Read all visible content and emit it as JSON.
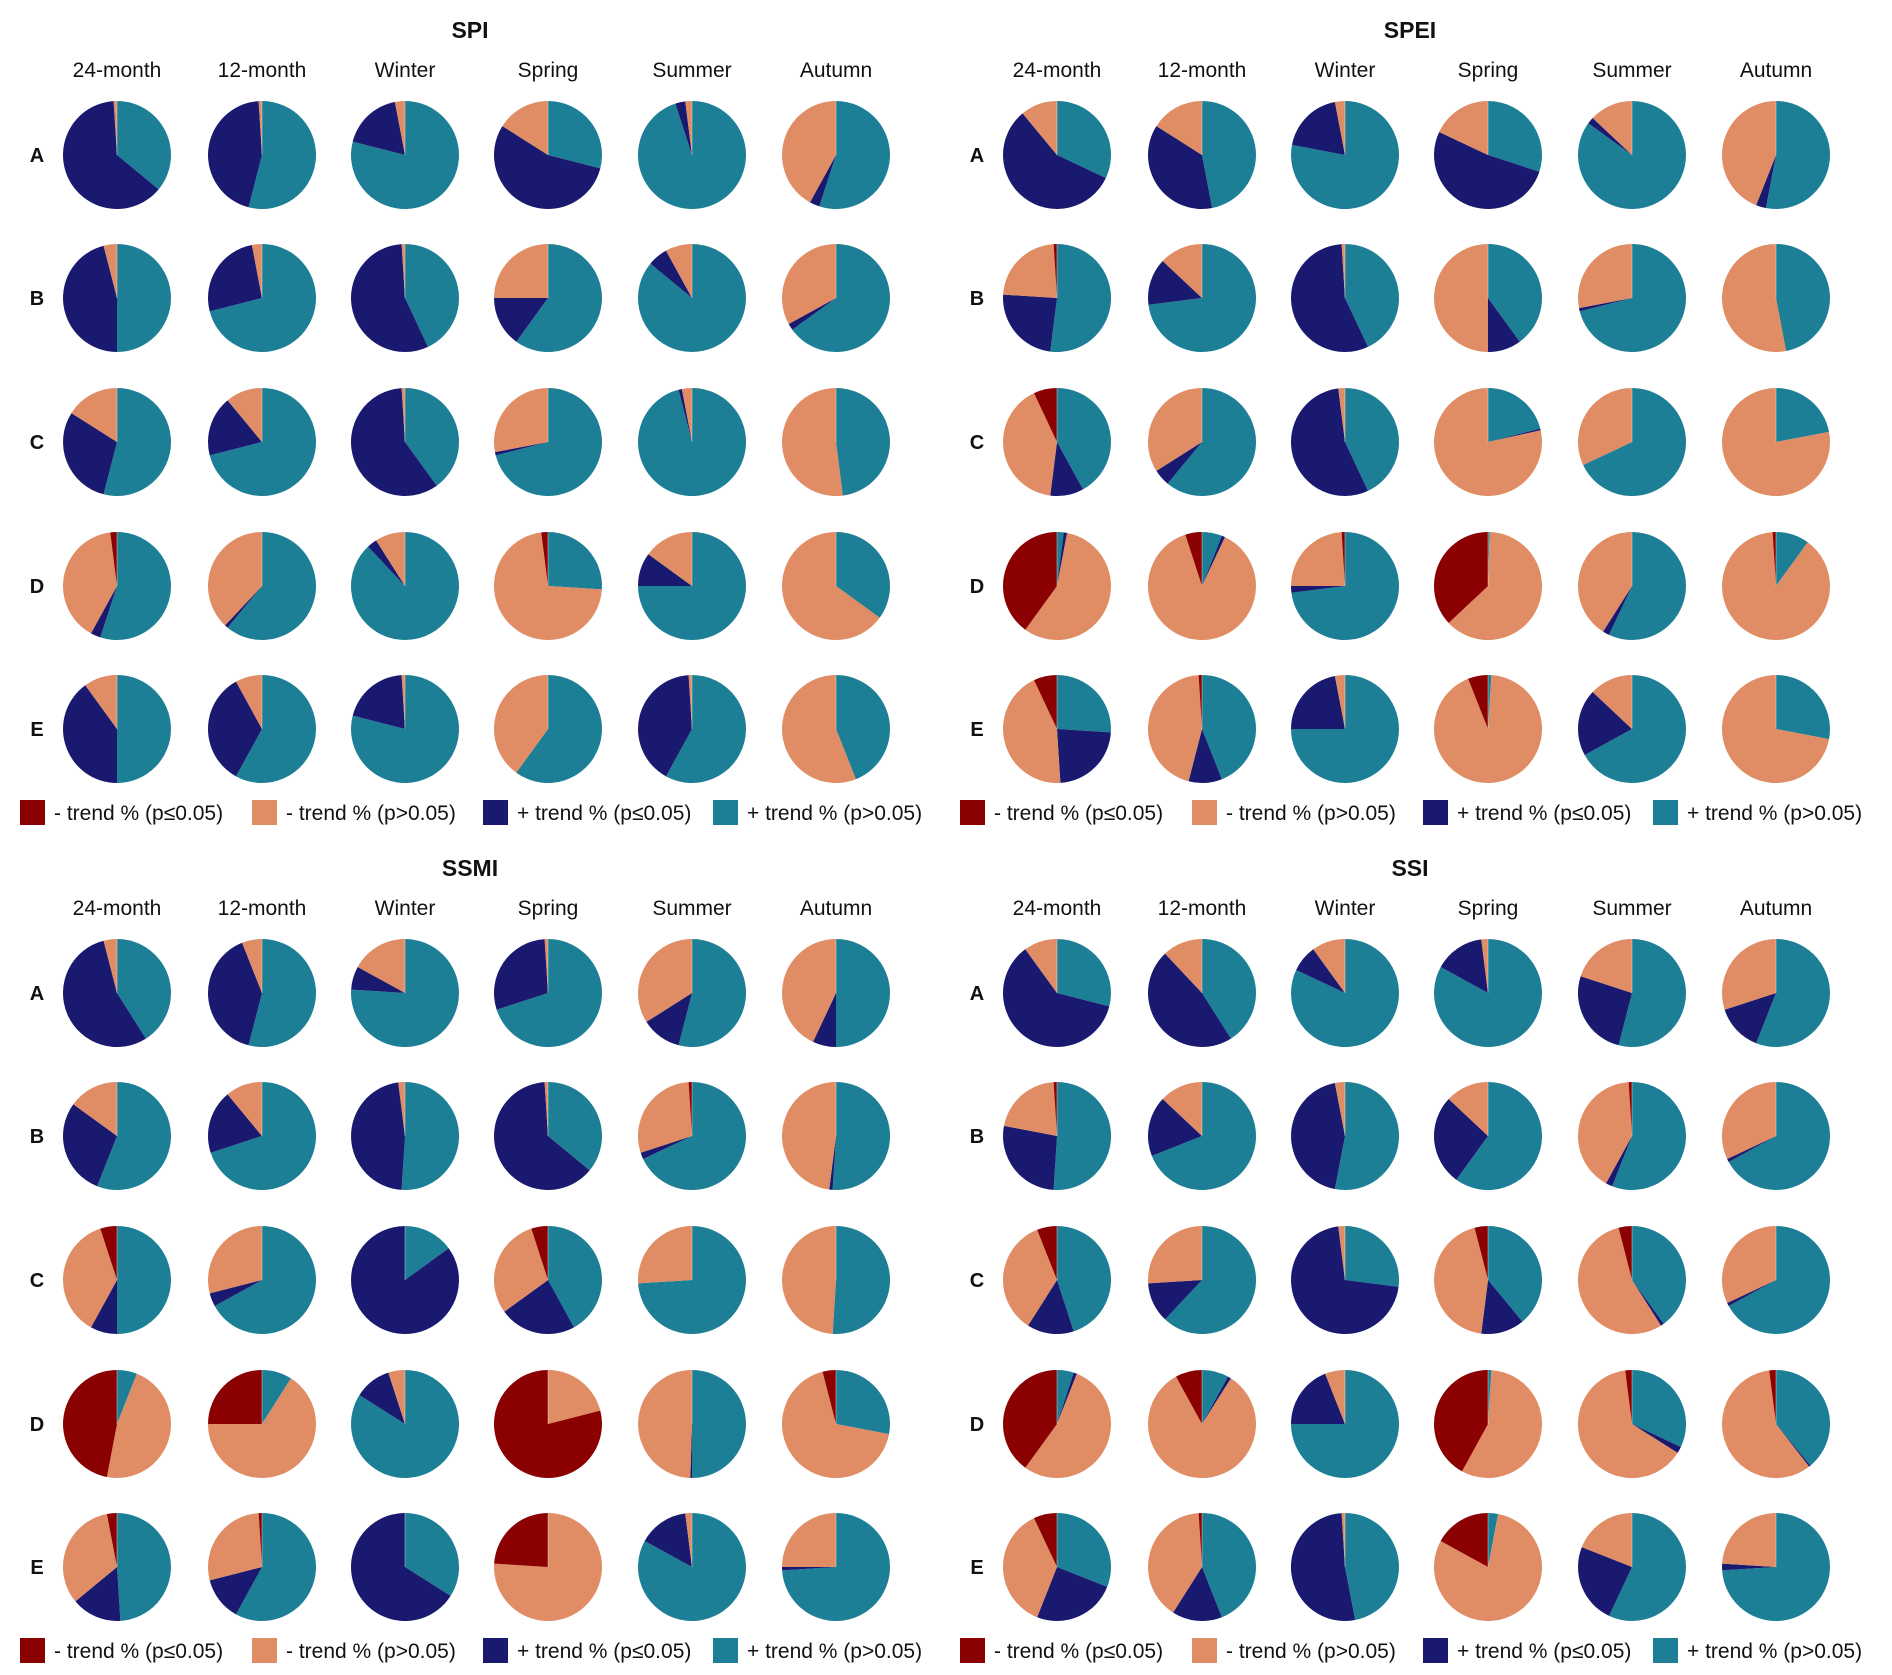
{
  "chart_data": {
    "type": "pie",
    "description": "Grid of pie charts: share of trend categories per drought index, region (A-E) and period",
    "legend": {
      "placement": "bottom",
      "entries": [
        {
          "key": "neg_sig",
          "label": "- trend % (p≤0.05)",
          "color": "#8B0000"
        },
        {
          "key": "neg_ns",
          "label": "- trend % (p>0.05)",
          "color": "#E08C65"
        },
        {
          "key": "pos_sig",
          "label": "+ trend % (p≤0.05)",
          "color": "#191970"
        },
        {
          "key": "pos_ns",
          "label": "+ trend % (p>0.05)",
          "color": "#1D7F96"
        }
      ]
    },
    "slice_order_clockwise_from_top": [
      "pos_ns",
      "pos_sig",
      "neg_ns",
      "neg_sig"
    ],
    "columns": [
      "24-month",
      "12-month",
      "Winter",
      "Spring",
      "Summer",
      "Autumn"
    ],
    "rows": [
      "A",
      "B",
      "C",
      "D",
      "E"
    ],
    "value_format": "[neg_sig, neg_ns, pos_sig, pos_ns] in percent",
    "panels": [
      {
        "title": "SPI",
        "values": [
          [
            [
              0,
              1,
              63,
              36
            ],
            [
              0,
              1,
              45,
              54
            ],
            [
              0,
              3,
              18,
              79
            ],
            [
              0,
              16,
              55,
              29
            ],
            [
              0,
              2,
              3,
              95
            ],
            [
              0,
              42,
              3,
              55
            ]
          ],
          [
            [
              0,
              4,
              46,
              50
            ],
            [
              0,
              3,
              26,
              71
            ],
            [
              0,
              1,
              56,
              43
            ],
            [
              0,
              25,
              15,
              60
            ],
            [
              0,
              8,
              6,
              86
            ],
            [
              0,
              33,
              2,
              65
            ]
          ],
          [
            [
              0,
              16,
              30,
              54
            ],
            [
              0,
              11,
              18,
              71
            ],
            [
              0,
              1,
              59,
              40
            ],
            [
              0,
              28,
              1,
              71
            ],
            [
              0,
              3,
              1,
              96
            ],
            [
              0,
              52,
              0,
              48
            ]
          ],
          [
            [
              2,
              40,
              3,
              55
            ],
            [
              0,
              38,
              1,
              61
            ],
            [
              0,
              9,
              3,
              88
            ],
            [
              2,
              72,
              0,
              26
            ],
            [
              0,
              15,
              10,
              75
            ],
            [
              0,
              65,
              0,
              35
            ]
          ],
          [
            [
              0,
              10,
              40,
              50
            ],
            [
              0,
              8,
              34,
              58
            ],
            [
              0,
              1,
              20,
              79
            ],
            [
              0,
              40,
              0,
              60
            ],
            [
              0,
              1,
              41,
              58
            ],
            [
              0,
              56,
              0,
              44
            ]
          ]
        ]
      },
      {
        "title": "SPEI",
        "values": [
          [
            [
              0,
              11,
              57,
              32
            ],
            [
              0,
              16,
              37,
              47
            ],
            [
              0,
              3,
              19,
              78
            ],
            [
              0,
              18,
              52,
              30
            ],
            [
              0,
              13,
              2,
              85
            ],
            [
              0,
              44,
              3,
              53
            ]
          ],
          [
            [
              1,
              23,
              24,
              52
            ],
            [
              0,
              13,
              14,
              73
            ],
            [
              0,
              1,
              56,
              43
            ],
            [
              0,
              50,
              10,
              40
            ],
            [
              0,
              28,
              1,
              71
            ],
            [
              0,
              53,
              0,
              47
            ]
          ],
          [
            [
              7,
              41,
              10,
              42
            ],
            [
              0,
              34,
              5,
              61
            ],
            [
              0,
              2,
              55,
              43
            ],
            [
              0,
              78.5,
              0.5,
              21
            ],
            [
              0,
              32,
              0,
              68
            ],
            [
              0,
              78,
              0,
              22
            ]
          ],
          [
            [
              40,
              57,
              1,
              2
            ],
            [
              5,
              88,
              1,
              6
            ],
            [
              1,
              24,
              2,
              73
            ],
            [
              37,
              62.5,
              0,
              0.5
            ],
            [
              0,
              41,
              2,
              57
            ],
            [
              1,
              89,
              0,
              10
            ]
          ],
          [
            [
              7,
              44,
              23,
              26
            ],
            [
              1,
              45,
              10,
              44
            ],
            [
              0,
              3,
              22,
              75
            ],
            [
              6,
              93,
              0,
              1
            ],
            [
              0,
              13,
              20,
              67
            ],
            [
              0,
              72,
              0,
              28
            ]
          ]
        ]
      },
      {
        "title": "SSMI",
        "values": [
          [
            [
              0,
              4,
              55,
              41
            ],
            [
              0,
              6,
              40,
              54
            ],
            [
              0,
              17,
              7,
              76
            ],
            [
              0,
              1,
              29,
              70
            ],
            [
              0,
              34,
              12,
              54
            ],
            [
              0,
              43,
              7,
              50
            ]
          ],
          [
            [
              0,
              15,
              29,
              56
            ],
            [
              0,
              11,
              19,
              70
            ],
            [
              0,
              2,
              47,
              51
            ],
            [
              0,
              1,
              63,
              36
            ],
            [
              1,
              29,
              2,
              68
            ],
            [
              0,
              48,
              1,
              51
            ]
          ],
          [
            [
              5,
              37,
              8,
              50
            ],
            [
              0,
              29,
              4,
              67
            ],
            [
              0,
              0,
              85,
              15
            ],
            [
              5,
              30,
              23,
              42
            ],
            [
              0,
              26,
              0,
              74
            ],
            [
              0,
              49,
              0,
              51
            ]
          ],
          [
            [
              47,
              47,
              0,
              6
            ],
            [
              25,
              66,
              0,
              9
            ],
            [
              0,
              5,
              11,
              84
            ],
            [
              79,
              21,
              0,
              0
            ],
            [
              0,
              49.5,
              0.5,
              50
            ],
            [
              4,
              68,
              0,
              28
            ]
          ],
          [
            [
              3,
              33,
              15,
              49
            ],
            [
              1,
              28,
              13,
              58
            ],
            [
              0,
              0,
              66,
              34
            ],
            [
              24,
              76,
              0,
              0
            ],
            [
              0,
              2,
              15,
              83
            ],
            [
              0,
              25,
              1,
              74
            ]
          ]
        ]
      },
      {
        "title": "SSI",
        "values": [
          [
            [
              0,
              10,
              61,
              29
            ],
            [
              0,
              12,
              47,
              41
            ],
            [
              0,
              10,
              8,
              82
            ],
            [
              0,
              2,
              15,
              83
            ],
            [
              0,
              20,
              26,
              54
            ],
            [
              0,
              30,
              14,
              56
            ]
          ],
          [
            [
              1,
              21,
              27,
              51
            ],
            [
              0,
              13,
              18,
              69
            ],
            [
              0,
              3,
              44,
              53
            ],
            [
              0,
              13,
              27,
              60
            ],
            [
              1,
              41,
              2,
              56
            ],
            [
              0,
              32,
              1,
              67
            ]
          ],
          [
            [
              6,
              35,
              14,
              45
            ],
            [
              0,
              26,
              12,
              62
            ],
            [
              0,
              2,
              71,
              27
            ],
            [
              4,
              44,
              13,
              39
            ],
            [
              4,
              55,
              1,
              40
            ],
            [
              0,
              32,
              1,
              67
            ]
          ],
          [
            [
              40,
              54,
              1,
              5
            ],
            [
              8,
              83,
              1,
              8
            ],
            [
              0,
              6,
              19,
              75
            ],
            [
              42,
              57,
              0,
              1
            ],
            [
              2,
              64,
              2,
              32
            ],
            [
              2,
              58.5,
              0.5,
              39
            ]
          ],
          [
            [
              7,
              37,
              25,
              31
            ],
            [
              1,
              40,
              15,
              44
            ],
            [
              0,
              1,
              52,
              47
            ],
            [
              17,
              80,
              0,
              3
            ],
            [
              0,
              19,
              24,
              57
            ],
            [
              0,
              24,
              2,
              74
            ]
          ]
        ]
      }
    ]
  }
}
